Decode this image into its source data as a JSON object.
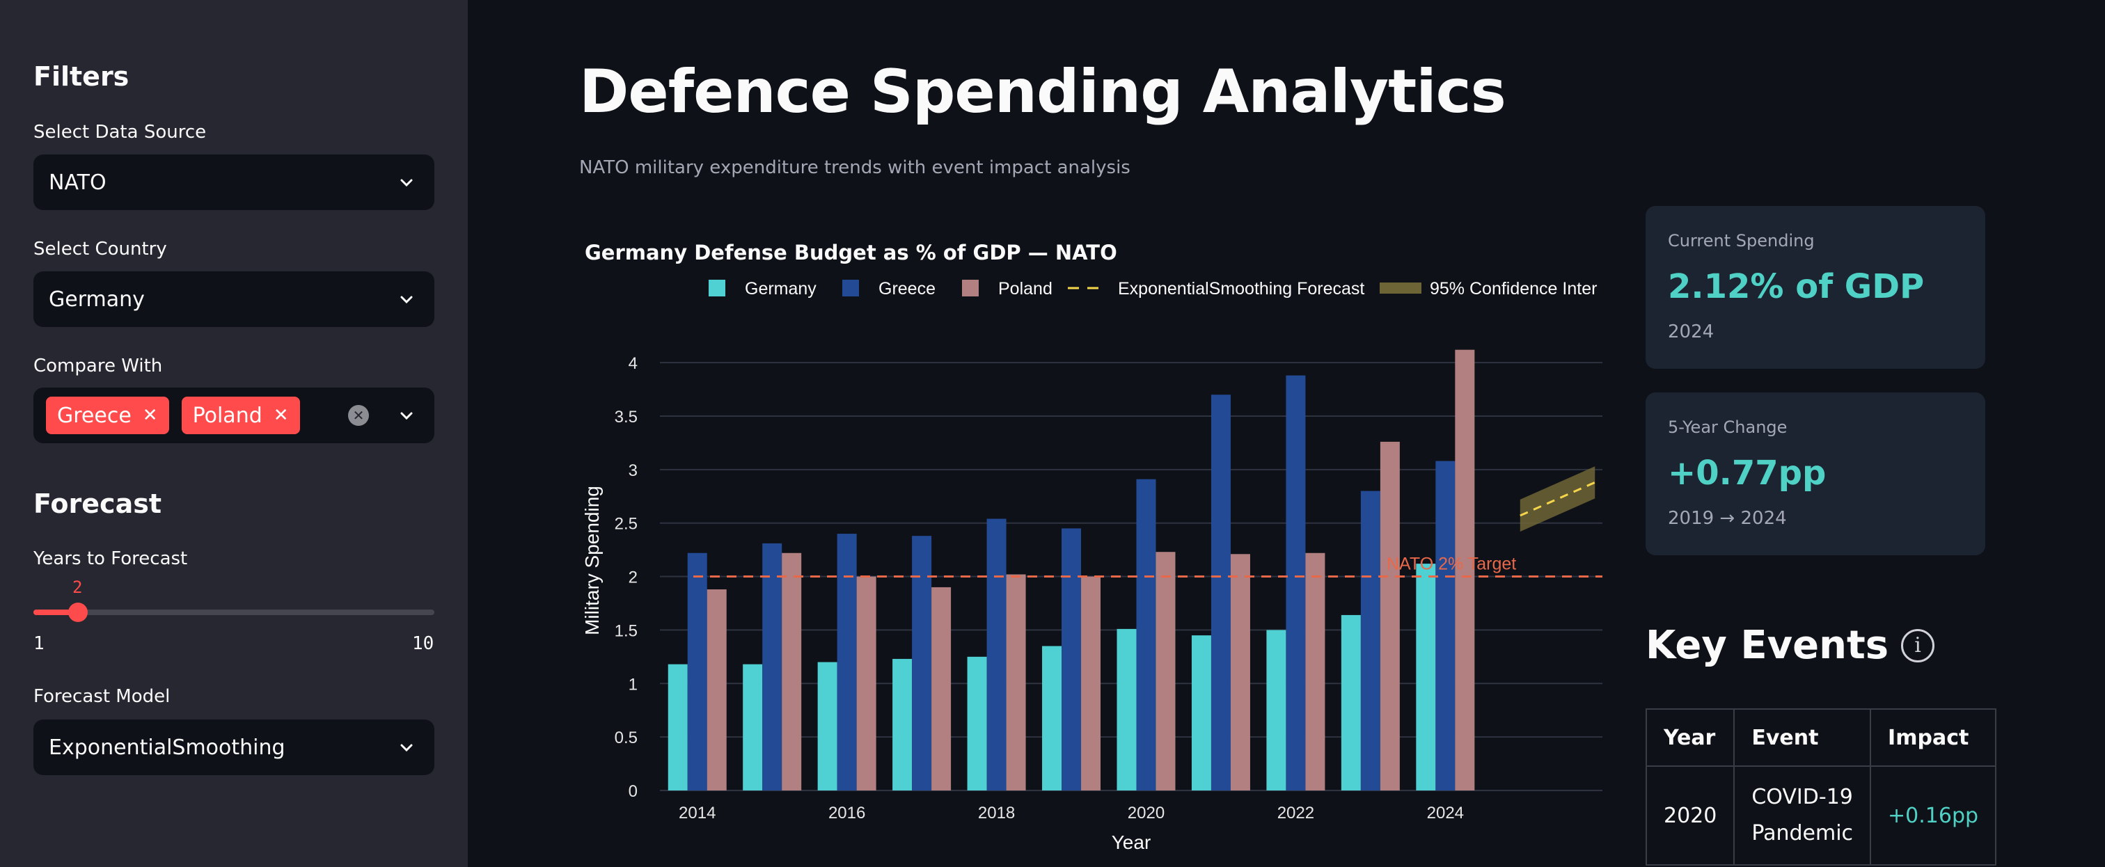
{
  "sidebar": {
    "filters_heading": "Filters",
    "data_source": {
      "label": "Select Data Source",
      "value": "NATO"
    },
    "country": {
      "label": "Select Country",
      "value": "Germany"
    },
    "compare": {
      "label": "Compare With",
      "chips": [
        "Greece",
        "Poland"
      ]
    },
    "forecast_heading": "Forecast",
    "years": {
      "label": "Years to Forecast",
      "value": 2,
      "min": 1,
      "max": 10,
      "value_label": "2",
      "min_label": "1",
      "max_label": "10"
    },
    "model": {
      "label": "Forecast Model",
      "value": "ExponentialSmoothing"
    }
  },
  "main": {
    "title": "Defence Spending Analytics",
    "subtitle": "NATO military expenditure trends with event impact analysis"
  },
  "metrics": [
    {
      "label": "Current Spending",
      "value": "2.12% of GDP",
      "sub": "2024"
    },
    {
      "label": "5-Year Change",
      "value": "+0.77pp",
      "sub": "2019 → 2024"
    }
  ],
  "key_events": {
    "title": "Key Events",
    "headers": [
      "Year",
      "Event",
      "Impact"
    ],
    "rows": [
      {
        "year": "2020",
        "event": "COVID-19 Pandemic",
        "impact": "+0.16pp"
      }
    ]
  },
  "chart_data": {
    "type": "bar",
    "title": "Germany Defense Budget as % of GDP — NATO",
    "xlabel": "Year",
    "ylabel": "Military Spending",
    "ylim": [
      0,
      4.3
    ],
    "yticks": [
      0,
      0.5,
      1,
      1.5,
      2,
      2.5,
      3,
      3.5,
      4
    ],
    "ytick_labels": [
      "0",
      "0.5",
      "1",
      "1.5",
      "2",
      "2.5",
      "3",
      "3.5",
      "4"
    ],
    "xticks": [
      2014,
      2016,
      2018,
      2020,
      2022,
      2024
    ],
    "xtick_labels": [
      "2014",
      "2016",
      "2018",
      "2020",
      "2022",
      "2024"
    ],
    "categories": [
      2014,
      2015,
      2016,
      2017,
      2018,
      2019,
      2020,
      2021,
      2022,
      2023,
      2024
    ],
    "series": [
      {
        "name": "Germany",
        "color": "#4fd1d3",
        "values": [
          1.18,
          1.18,
          1.2,
          1.23,
          1.25,
          1.35,
          1.51,
          1.45,
          1.5,
          1.64,
          2.12
        ]
      },
      {
        "name": "Greece",
        "color": "#234b95",
        "values": [
          2.22,
          2.31,
          2.4,
          2.38,
          2.54,
          2.45,
          2.91,
          3.7,
          3.88,
          2.8,
          3.08
        ]
      },
      {
        "name": "Poland",
        "color": "#b28080",
        "values": [
          1.88,
          2.22,
          2.0,
          1.9,
          2.02,
          2.0,
          2.23,
          2.21,
          2.22,
          3.26,
          4.12
        ]
      }
    ],
    "forecast": {
      "name": "ExponentialSmoothing Forecast",
      "color": "#f5d64a",
      "x": [
        2025,
        2026
      ],
      "y": [
        2.57,
        2.88
      ],
      "ci_lower": [
        2.42,
        2.73
      ],
      "ci_upper": [
        2.72,
        3.03
      ],
      "ci_name": "95% Confidence Inter",
      "ci_color": "#6e6536"
    },
    "target": {
      "value": 2.0,
      "label": "NATO 2% Target",
      "color": "#e8684a"
    },
    "legend_position": "top",
    "grid": true
  }
}
